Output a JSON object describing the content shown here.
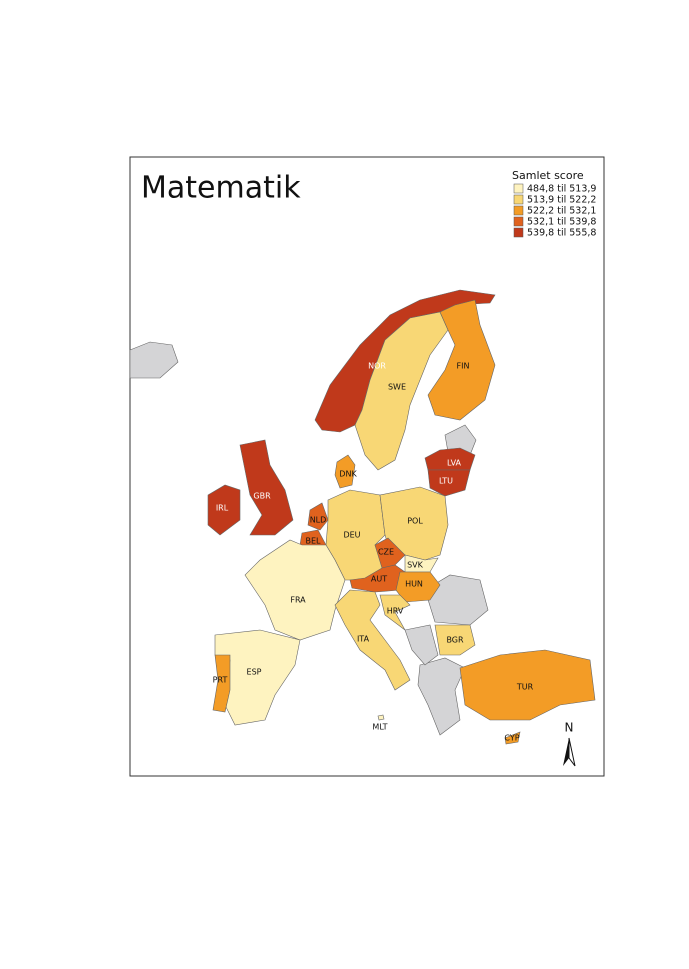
{
  "title": "Matematik",
  "legend": {
    "title": "Samlet score",
    "items": [
      {
        "label": "484,8 til 513,9",
        "color": "#fef3c0"
      },
      {
        "label": "513,9 til 522,2",
        "color": "#f8d775"
      },
      {
        "label": "522,2 til 532,1",
        "color": "#f39c26"
      },
      {
        "label": "532,1 til 539,8",
        "color": "#e0621e"
      },
      {
        "label": "539,8 til 555,8",
        "color": "#c0391b"
      }
    ]
  },
  "countries": [
    {
      "label": "NOR",
      "color": "#c0391b"
    },
    {
      "label": "SWE",
      "color": "#f8d775"
    },
    {
      "label": "FIN",
      "color": "#f39c26"
    },
    {
      "label": "LVA",
      "color": "#c0391b"
    },
    {
      "label": "LTU",
      "color": "#c0391b"
    },
    {
      "label": "DNK",
      "color": "#f39c26"
    },
    {
      "label": "GBR",
      "color": "#c0391b"
    },
    {
      "label": "IRL",
      "color": "#c0391b"
    },
    {
      "label": "NLD",
      "color": "#e0621e"
    },
    {
      "label": "BEL",
      "color": "#e0621e"
    },
    {
      "label": "DEU",
      "color": "#f8d775"
    },
    {
      "label": "POL",
      "color": "#f8d775"
    },
    {
      "label": "CZE",
      "color": "#e0621e"
    },
    {
      "label": "SVK",
      "color": "#fef3c0"
    },
    {
      "label": "AUT",
      "color": "#e0621e"
    },
    {
      "label": "HUN",
      "color": "#f39c26"
    },
    {
      "label": "FRA",
      "color": "#fef3c0"
    },
    {
      "label": "HRV",
      "color": "#f8d775"
    },
    {
      "label": "ITA",
      "color": "#f8d775"
    },
    {
      "label": "BGR",
      "color": "#f8d775"
    },
    {
      "label": "ESP",
      "color": "#fef3c0"
    },
    {
      "label": "PRT",
      "color": "#f39c26"
    },
    {
      "label": "TUR",
      "color": "#f39c26"
    },
    {
      "label": "MLT",
      "color": "#fef3c0"
    },
    {
      "label": "CYP",
      "color": "#f39c26"
    }
  ],
  "north_arrow": "N"
}
